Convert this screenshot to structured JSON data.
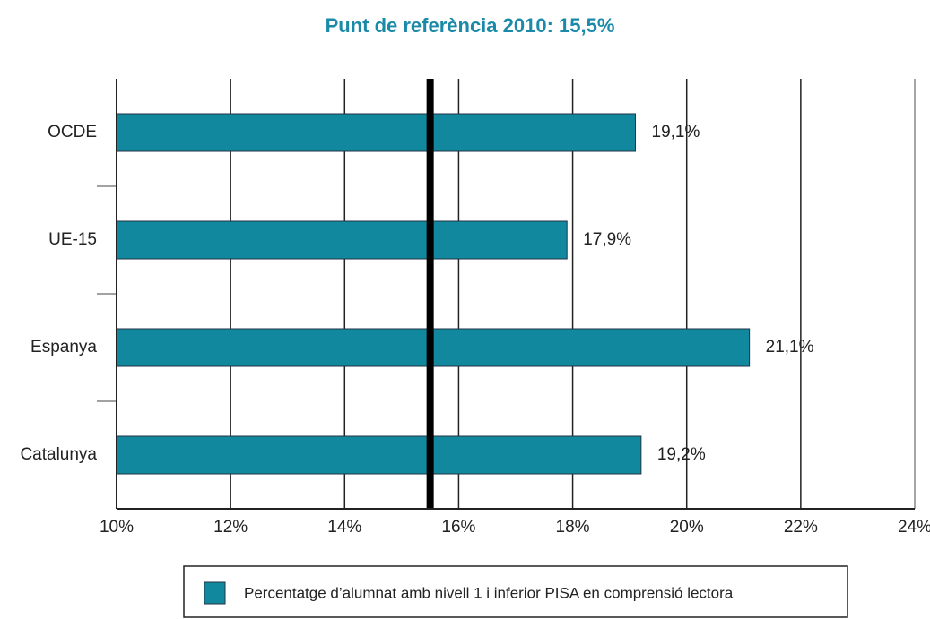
{
  "chart_data": {
    "type": "hbar",
    "title": "Punt de referència 2010: 15,5%",
    "categories": [
      "OCDE",
      "UE-15",
      "Espanya",
      "Catalunya"
    ],
    "series": [
      {
        "name": "Percentatge d’alumnat amb nivell 1 i inferior PISA en comprensió lectora",
        "color": "#12889f",
        "values": [
          19.1,
          17.9,
          21.1,
          19.2
        ],
        "value_labels": [
          "19,1%",
          "17,9%",
          "21,1%",
          "19,2%"
        ]
      }
    ],
    "reference_line": 15.5,
    "xlim": [
      10,
      24
    ],
    "xticks": [
      {
        "value": 10,
        "label": "10%"
      },
      {
        "value": 12,
        "label": "12%"
      },
      {
        "value": 14,
        "label": "14%"
      },
      {
        "value": 16,
        "label": "16%"
      },
      {
        "value": 18,
        "label": "18%"
      },
      {
        "value": 20,
        "label": "20%"
      },
      {
        "value": 22,
        "label": "22%"
      },
      {
        "value": 24,
        "label": "24%"
      }
    ],
    "grid": true,
    "legend": "bottom"
  }
}
